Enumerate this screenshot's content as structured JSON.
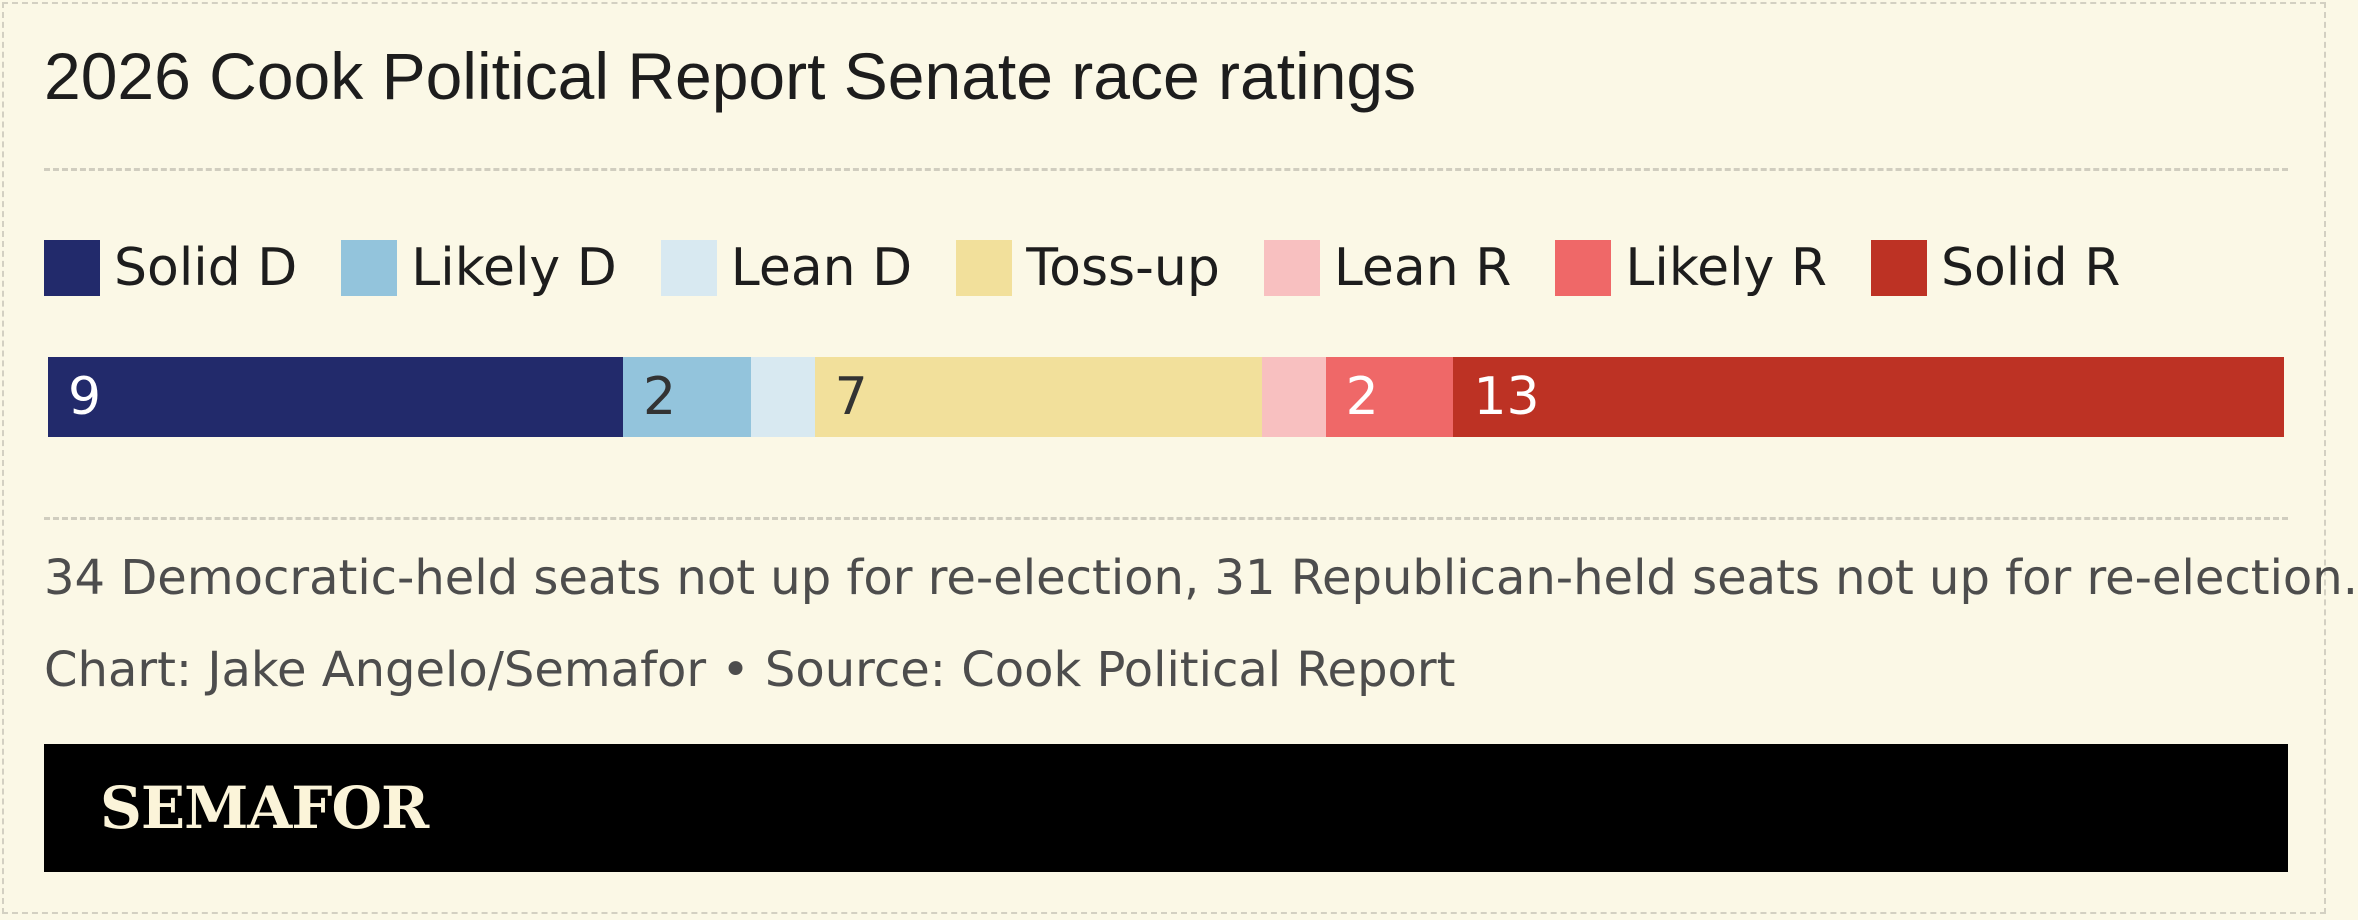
{
  "title": "2026 Cook Political Report Senate race ratings",
  "note": "34 Democratic-held seats not up for re-election, 31 Republican-held seats not up for re-election.",
  "credit": "Chart: Jake Angelo/Semafor • Source: Cook Political Report",
  "brand": "SEMAFOR",
  "colors": {
    "background": "#fbf8e6",
    "logo_bar": "#000000",
    "logo_text": "#fbf4d9"
  },
  "chart_data": {
    "type": "bar",
    "orientation": "horizontal-stacked",
    "title": "2026 Cook Political Report Senate race ratings",
    "legend_position": "top",
    "categories": [
      "Solid D",
      "Likely D",
      "Lean D",
      "Toss-up",
      "Lean R",
      "Likely R",
      "Solid R"
    ],
    "values": [
      9,
      2,
      1,
      7,
      1,
      2,
      13
    ],
    "value_labels": [
      "9",
      "2",
      "",
      "7",
      "",
      "2",
      "13"
    ],
    "colors": [
      "#222a6b",
      "#93c4dc",
      "#d8e9f1",
      "#f2e09b",
      "#f8c0c0",
      "#ef6868",
      "#bd3224"
    ],
    "label_colors": [
      "#ffffff",
      "#333333",
      "#333333",
      "#333333",
      "#333333",
      "#ffffff",
      "#ffffff"
    ]
  }
}
